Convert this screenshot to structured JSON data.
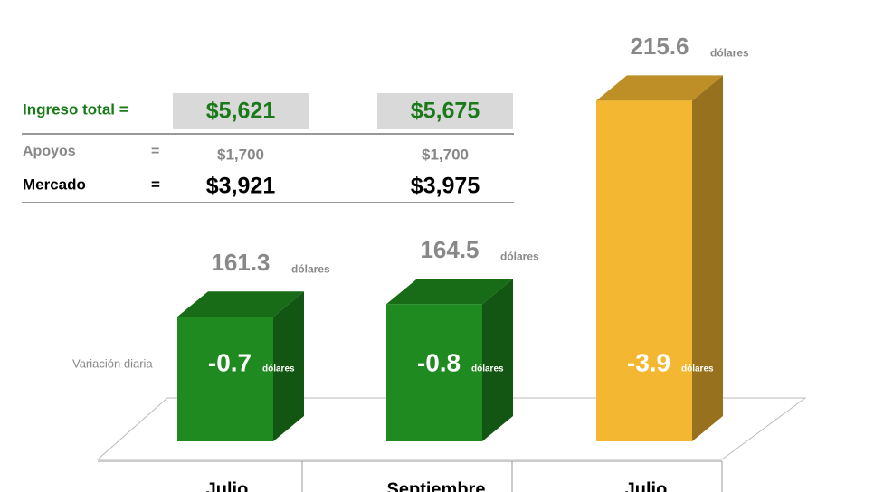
{
  "table": {
    "title_row": {
      "label": "Ingreso total =",
      "values": [
        "$5,621",
        "$5,675"
      ]
    },
    "rows": [
      {
        "label": "Apoyos",
        "eq": "=",
        "values": [
          "$1,700",
          "$1,700"
        ]
      },
      {
        "label": "Mercado",
        "eq": "=",
        "values": [
          "$3,921",
          "$3,975"
        ]
      }
    ]
  },
  "chart_data": {
    "type": "bar3d",
    "categories": [
      "Julio",
      "Septiembre",
      "Julio"
    ],
    "values": [
      161.3,
      164.5,
      215.6
    ],
    "unit": "dólares",
    "colors": [
      "#1f8a1f",
      "#1f8a1f",
      "#f4b731"
    ],
    "ylim": [
      130,
      220
    ],
    "change_label": "Variación diaria",
    "changes": [
      -0.7,
      -0.8,
      -3.9
    ]
  }
}
